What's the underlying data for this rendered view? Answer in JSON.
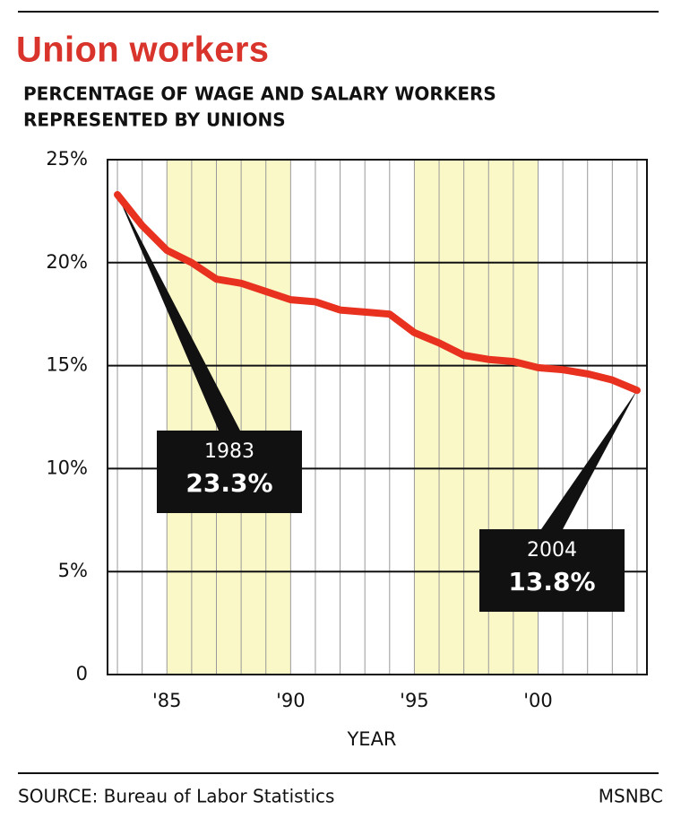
{
  "chart_data": {
    "type": "line",
    "title": "Union workers",
    "subtitle": [
      "PERCENTAGE OF WAGE AND SALARY WORKERS",
      "REPRESENTED BY UNIONS"
    ],
    "x_label": "YEAR",
    "source": "SOURCE:  Bureau of Labor Statistics",
    "credit": "MSNBC",
    "x": [
      1983,
      1984,
      1985,
      1986,
      1987,
      1988,
      1989,
      1990,
      1991,
      1992,
      1993,
      1994,
      1995,
      1996,
      1997,
      1998,
      1999,
      2000,
      2001,
      2002,
      2003,
      2004
    ],
    "series": [
      {
        "color": "#e8311f",
        "values": [
          23.3,
          21.8,
          20.6,
          20.0,
          19.2,
          19.0,
          18.6,
          18.2,
          18.1,
          17.7,
          17.6,
          17.5,
          16.6,
          16.1,
          15.5,
          15.3,
          15.2,
          14.9,
          14.8,
          14.6,
          14.3,
          13.8
        ]
      }
    ],
    "xlim": [
      1982.6,
      2004.4
    ],
    "ylim": [
      0,
      25
    ],
    "xticks": [
      {
        "value": 1985,
        "label": "'85"
      },
      {
        "value": 1990,
        "label": "'90"
      },
      {
        "value": 1995,
        "label": "'95"
      },
      {
        "value": 2000,
        "label": "'00"
      }
    ],
    "yticks": [
      0,
      {
        "value": 5,
        "label": "5%"
      },
      {
        "value": 10,
        "label": "10%"
      },
      {
        "value": 15,
        "label": "15%"
      },
      {
        "value": 20,
        "label": "20%"
      },
      {
        "value": 25,
        "label": "25%"
      }
    ],
    "shaded_ranges": [
      [
        1985,
        1990
      ],
      [
        1995,
        2000
      ]
    ],
    "shade_color": "#fbf8c8",
    "grid": true,
    "annotations": [
      {
        "x": 1983,
        "y": 23.3,
        "year_label": "1983",
        "value_label": "23.3%"
      },
      {
        "x": 2004,
        "y": 13.8,
        "year_label": "2004",
        "value_label": "13.8%"
      }
    ]
  }
}
